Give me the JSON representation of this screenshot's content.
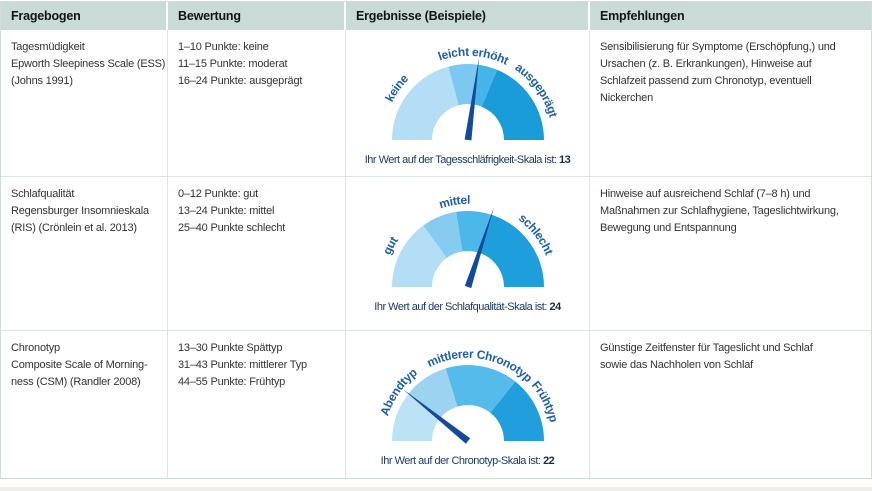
{
  "table": {
    "headers": [
      "Fragebogen",
      "Bewertung",
      "Ergebnisse (Beispiele)",
      "Empfehlungen"
    ],
    "rows": [
      {
        "fragebogen_lines": [
          "Tagesmüdigkeit",
          "Epworth Sleepiness Scale (ESS)",
          "(Johns 1991)"
        ],
        "bewertung_lines": [
          "1–10 Punkte: keine",
          "11–15 Punkte: moderat",
          "16–24 Punkte: ausgeprägt"
        ],
        "empfehlungen": "Sensibilisierung für Symptome (Erschöpfung,) und Ursachen (z. B. Erkrankungen), Hinweise auf Schlafzeit passend zum Chronotyp, eventuell Nickerchen"
      },
      {
        "fragebogen_lines": [
          "Schlafqualität",
          "Regensburger Insomnieskala",
          "(RIS) (Crönlein et al. 2013)"
        ],
        "bewertung_lines": [
          "0–12 Punkte: gut",
          "13–24 Punkte: mittel",
          "25–40 Punkte schlecht"
        ],
        "empfehlungen": "Hinweise auf ausreichend Schlaf (7–8 h) und Maßnahmen zur Schlafhygiene, Tageslichtwirkung, Bewegung und Entspannung"
      },
      {
        "fragebogen_lines": [
          "Chronotyp",
          "Composite Scale of Morning-",
          "ness (CSM) (Randler 2008)"
        ],
        "bewertung_lines": [
          "13–30 Punkte Spättyp",
          "31–43 Punkte: mittlerer Typ",
          "44–55 Punkte: Frühtyp"
        ],
        "empfehlungen": "Günstige Zeitfenster für Tageslicht und Schlaf sowie das Nachholen von Schlaf"
      }
    ]
  },
  "chart_data": [
    {
      "type": "gauge",
      "title": "Tagesschläfrigkeit (ESS)",
      "scale_range": [
        0,
        24
      ],
      "zones": [
        {
          "label": "keine",
          "points": "1–10"
        },
        {
          "label": "leicht erhöht",
          "points": "11–15"
        },
        {
          "label": "ausgeprägt",
          "points": "16–24"
        }
      ],
      "value": 13,
      "value_text": "13",
      "caption": "Ihr Wert auf der Tagesschläfrigkeit-Skala ist:",
      "needle": 0.542,
      "bands": [
        {
          "to": 0.417,
          "color": "#b4def5"
        },
        {
          "to": 0.542,
          "color": "#7dc8f0"
        },
        {
          "to": 0.625,
          "color": "#45b4e7"
        },
        {
          "to": 1,
          "color": "#1a9cd9"
        }
      ],
      "labels": [
        {
          "text": "keine",
          "pos": 0.2
        },
        {
          "text": "leicht erhöht",
          "pos": 0.52
        },
        {
          "text": "ausgeprägt",
          "pos": 0.8
        }
      ]
    },
    {
      "type": "gauge",
      "title": "Schlafqualität (RIS)",
      "scale_range": [
        0,
        40
      ],
      "zones": [
        {
          "label": "gut",
          "points": "0–12"
        },
        {
          "label": "mittel",
          "points": "13–24"
        },
        {
          "label": "schlecht",
          "points": "25–40"
        }
      ],
      "value": 24,
      "value_text": "24",
      "caption": "Ihr Wert auf der Schlafqualität-Skala ist:",
      "needle": 0.6,
      "bands": [
        {
          "to": 0.3,
          "color": "#b4def5"
        },
        {
          "to": 0.45,
          "color": "#86ccf1"
        },
        {
          "to": 0.6,
          "color": "#4cb7e9"
        },
        {
          "to": 1,
          "color": "#1e9fdc"
        }
      ],
      "labels": [
        {
          "text": "gut",
          "pos": 0.155
        },
        {
          "text": "mittel",
          "pos": 0.45
        },
        {
          "text": "schlecht",
          "pos": 0.79
        }
      ]
    },
    {
      "type": "gauge",
      "title": "Chronotyp (CSM)",
      "scale_range": [
        13,
        55
      ],
      "zones": [
        {
          "label": "Abendtyp",
          "points": "13–30"
        },
        {
          "label": "mittlerer Chronotyp",
          "points": "31–43"
        },
        {
          "label": "Frühtyp",
          "points": "44–55"
        }
      ],
      "value": 22,
      "value_text": "22",
      "caption": "Ihr Wert auf der Chronotyp-Skala ist:",
      "needle": 0.214,
      "bands": [
        {
          "to": 0.214,
          "color": "#bce2f6"
        },
        {
          "to": 0.405,
          "color": "#9cd3f1"
        },
        {
          "to": 0.714,
          "color": "#55bbea"
        },
        {
          "to": 1,
          "color": "#219fdc"
        }
      ],
      "labels": [
        {
          "text": "Abendtyp",
          "pos": 0.195
        },
        {
          "text": "mittlerer Chronotyp",
          "pos": 0.55
        },
        {
          "text": "Frühtyp",
          "pos": 0.85
        }
      ]
    }
  ],
  "colors": {
    "header_bg": "#c8dbd7",
    "needle": "#134a9c",
    "zone_label": "#1d5fad",
    "caption_text": "#1b3c66",
    "border": "#dde6e2"
  }
}
